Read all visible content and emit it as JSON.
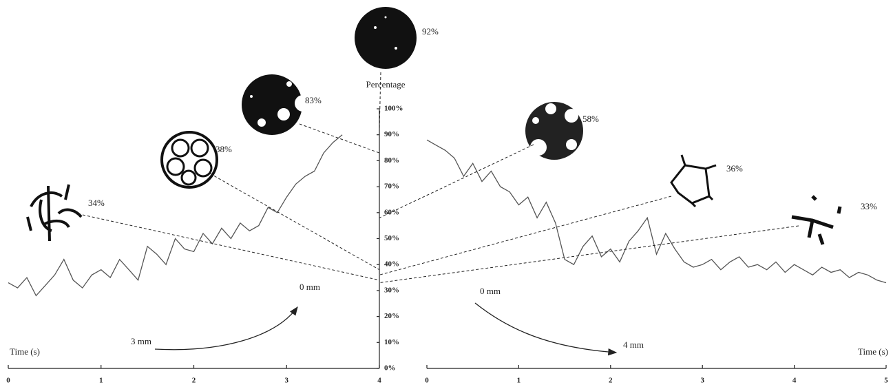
{
  "y_axis_title": "Percentage",
  "chart_data": [
    {
      "type": "line",
      "x_label": "Time (s)",
      "x": [
        0,
        0.1,
        0.2,
        0.3,
        0.4,
        0.5,
        0.6,
        0.7,
        0.8,
        0.9,
        1,
        1.1,
        1.2,
        1.3,
        1.4,
        1.5,
        1.6,
        1.7,
        1.8,
        1.9,
        2,
        2.1,
        2.2,
        2.3,
        2.4,
        2.5,
        2.6,
        2.7,
        2.8,
        2.9,
        3,
        3.1,
        3.2,
        3.3,
        3.4,
        3.5,
        3.6
      ],
      "series": [
        {
          "color": "#555555",
          "values": [
            33,
            31,
            35,
            28,
            32,
            36,
            42,
            34,
            31,
            36,
            38,
            35,
            42,
            38,
            34,
            47,
            44,
            40,
            50,
            46,
            45,
            52,
            48,
            54,
            50,
            56,
            53,
            55,
            62,
            60,
            66,
            71,
            74,
            76,
            83,
            87,
            90
          ]
        }
      ],
      "xlim": [
        0,
        4
      ],
      "xticks": [
        0,
        1,
        2,
        3,
        4
      ],
      "ylim": [
        0,
        100
      ],
      "yticks": [
        {
          "value": 0,
          "label": "0%"
        },
        {
          "value": 10,
          "label": "10%"
        },
        {
          "value": 20,
          "label": "20%"
        },
        {
          "value": 30,
          "label": "30%"
        },
        {
          "value": 40,
          "label": "40%"
        },
        {
          "value": 50,
          "label": "50%"
        },
        {
          "value": 60,
          "label": "60%"
        },
        {
          "value": 70,
          "label": "70%"
        },
        {
          "value": 80,
          "label": "80%"
        },
        {
          "value": 90,
          "label": "90%"
        },
        {
          "value": 100,
          "label": "100%"
        }
      ],
      "annotations": [
        {
          "value": 34,
          "label": "34%"
        },
        {
          "value": 38,
          "label": "38%"
        },
        {
          "value": 83,
          "label": "83%"
        },
        {
          "value": 92,
          "label": "92%"
        }
      ],
      "distance_labels": [
        "3 mm",
        "0 mm"
      ]
    },
    {
      "type": "line",
      "x_label": "Time (s)",
      "x": [
        0,
        0.1,
        0.2,
        0.3,
        0.4,
        0.5,
        0.6,
        0.7,
        0.8,
        0.9,
        1,
        1.1,
        1.2,
        1.3,
        1.4,
        1.5,
        1.6,
        1.7,
        1.8,
        1.9,
        2,
        2.1,
        2.2,
        2.3,
        2.4,
        2.5,
        2.6,
        2.7,
        2.8,
        2.9,
        3,
        3.1,
        3.2,
        3.3,
        3.4,
        3.5,
        3.6,
        3.7,
        3.8,
        3.9,
        4,
        4.1,
        4.2,
        4.3,
        4.4,
        4.5,
        4.6,
        4.7,
        4.8,
        4.9,
        5
      ],
      "series": [
        {
          "color": "#555555",
          "values": [
            88,
            86,
            84,
            81,
            74,
            79,
            72,
            76,
            70,
            68,
            63,
            66,
            58,
            64,
            56,
            42,
            40,
            47,
            51,
            43,
            46,
            41,
            49,
            53,
            58,
            44,
            52,
            46,
            41,
            39,
            40,
            42,
            38,
            41,
            43,
            39,
            40,
            38,
            41,
            37,
            40,
            38,
            36,
            39,
            37,
            38,
            35,
            37,
            36,
            34,
            33
          ]
        }
      ],
      "xlim": [
        0,
        5
      ],
      "xticks": [
        0,
        1,
        2,
        3,
        4,
        5
      ],
      "ylim": [
        0,
        100
      ],
      "annotations": [
        {
          "value": 58,
          "label": "58%"
        },
        {
          "value": 36,
          "label": "36%"
        },
        {
          "value": 33,
          "label": "33%"
        }
      ],
      "distance_labels": [
        "0 mm",
        "4 mm"
      ]
    }
  ]
}
